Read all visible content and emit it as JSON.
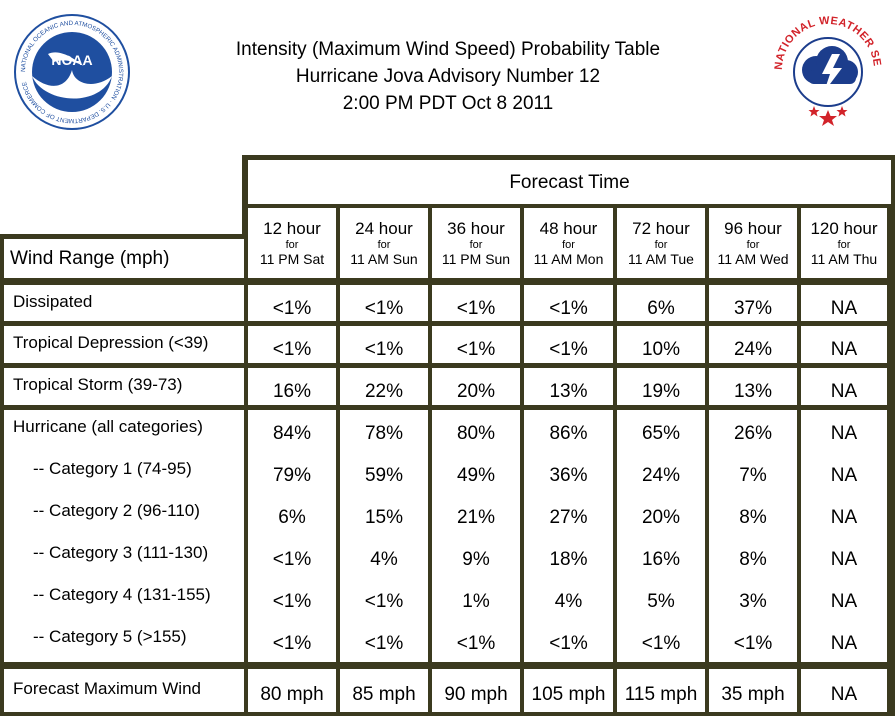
{
  "header": {
    "title_line1": "Intensity (Maximum Wind Speed) Probability Table",
    "title_line2": "Hurricane Jova Advisory Number 12",
    "title_line3": "2:00 PM PDT Oct 8 2011"
  },
  "logos": {
    "noaa": {
      "center_text": "NOAA",
      "ring_text": "NATIONAL OCEANIC AND ATMOSPHERIC ADMINISTRATION · U.S. DEPARTMENT OF COMMERCE"
    },
    "nws": {
      "ring_text": "NATIONAL WEATHER SERVICE"
    }
  },
  "table": {
    "forecast_time_label": "Forecast Time",
    "wind_range_label": "Wind Range (mph)",
    "columns": [
      {
        "hours": "12 hour",
        "for": "for",
        "time": "11 PM Sat"
      },
      {
        "hours": "24 hour",
        "for": "for",
        "time": "11 AM Sun"
      },
      {
        "hours": "36 hour",
        "for": "for",
        "time": "11 PM Sun"
      },
      {
        "hours": "48 hour",
        "for": "for",
        "time": "11 AM Mon"
      },
      {
        "hours": "72 hour",
        "for": "for",
        "time": "11 AM Tue"
      },
      {
        "hours": "96 hour",
        "for": "for",
        "time": "11 AM Wed"
      },
      {
        "hours": "120 hour",
        "for": "for",
        "time": "11 AM Thu"
      }
    ],
    "rows": [
      {
        "label": "Dissipated",
        "values": [
          "<1%",
          "<1%",
          "<1%",
          "<1%",
          "6%",
          "37%",
          "NA"
        ]
      },
      {
        "label": "Tropical Depression (<39)",
        "values": [
          "<1%",
          "<1%",
          "<1%",
          "<1%",
          "10%",
          "24%",
          "NA"
        ]
      },
      {
        "label": "Tropical Storm (39-73)",
        "values": [
          "16%",
          "22%",
          "20%",
          "13%",
          "19%",
          "13%",
          "NA"
        ]
      },
      {
        "label": "Hurricane (all categories)",
        "values": [
          "84%",
          "78%",
          "80%",
          "86%",
          "65%",
          "26%",
          "NA"
        ]
      },
      {
        "label": "-- Category 1 (74-95)",
        "values": [
          "79%",
          "59%",
          "49%",
          "36%",
          "24%",
          "7%",
          "NA"
        ]
      },
      {
        "label": "-- Category 2 (96-110)",
        "values": [
          "6%",
          "15%",
          "21%",
          "27%",
          "20%",
          "8%",
          "NA"
        ]
      },
      {
        "label": "-- Category 3 (111-130)",
        "values": [
          "<1%",
          "4%",
          "9%",
          "18%",
          "16%",
          "8%",
          "NA"
        ]
      },
      {
        "label": "-- Category 4 (131-155)",
        "values": [
          "<1%",
          "<1%",
          "1%",
          "4%",
          "5%",
          "3%",
          "NA"
        ]
      },
      {
        "label": "-- Category 5 (>155)",
        "values": [
          "<1%",
          "<1%",
          "<1%",
          "<1%",
          "<1%",
          "<1%",
          "NA"
        ]
      }
    ],
    "max_wind": {
      "label": "Forecast Maximum Wind",
      "values": [
        "80 mph",
        "85 mph",
        "90 mph",
        "105 mph",
        "115 mph",
        "35 mph",
        "NA"
      ]
    }
  },
  "colors": {
    "border": "#3b3a1f",
    "noaa_blue": "#1f4fa0",
    "nws_red": "#d2232a",
    "nws_navy": "#1c3d8c"
  }
}
